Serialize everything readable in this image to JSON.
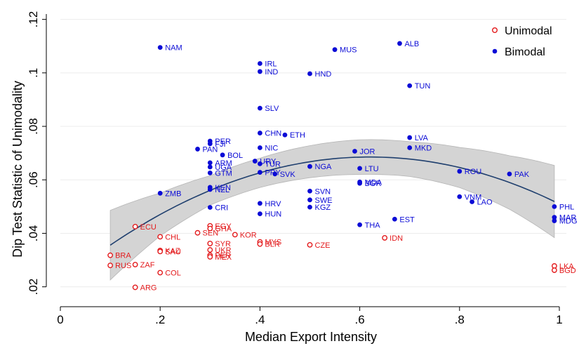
{
  "chart_data": {
    "type": "scatter",
    "xlabel": "Median Export Intensity",
    "ylabel": "Dip Test Statistic of Unimodality",
    "xlim": [
      0,
      1
    ],
    "ylim": [
      0.0165,
      0.122
    ],
    "x_ticks": [
      0,
      0.2,
      0.4,
      0.6,
      0.8,
      1
    ],
    "x_tick_labels": [
      "0",
      ".2",
      ".4",
      ".6",
      ".8",
      "1"
    ],
    "y_ticks": [
      0.02,
      0.04,
      0.06,
      0.08,
      0.1,
      0.12
    ],
    "y_tick_labels": [
      ".02",
      ".04",
      ".06",
      ".08",
      ".1",
      ".12"
    ],
    "grid": "horizontal",
    "legend_position": "top-right",
    "colors": {
      "unimodal": "#e31a1c",
      "bimodal": "#0b0bd6",
      "fit_line": "#1f3f6e",
      "ci_band": "#d4d4d4"
    },
    "series": [
      {
        "name": "Unimodal",
        "marker": "hollow-circle",
        "points": [
          {
            "label": "ECU",
            "x": 0.15,
            "y": 0.0425
          },
          {
            "label": "CHL",
            "x": 0.2,
            "y": 0.0387
          },
          {
            "label": "BRA",
            "x": 0.1,
            "y": 0.0318
          },
          {
            "label": "RUS",
            "x": 0.1,
            "y": 0.028
          },
          {
            "label": "ZAF",
            "x": 0.15,
            "y": 0.0283
          },
          {
            "label": "ARG",
            "x": 0.15,
            "y": 0.0198
          },
          {
            "label": "COL",
            "x": 0.2,
            "y": 0.0253
          },
          {
            "label": "KAZ",
            "x": 0.2,
            "y": 0.0336
          },
          {
            "label": "SAU",
            "x": 0.2,
            "y": 0.0332
          },
          {
            "label": "SEN",
            "x": 0.275,
            "y": 0.0402
          },
          {
            "label": "EGY",
            "x": 0.3,
            "y": 0.0428
          },
          {
            "label": "GHA",
            "x": 0.3,
            "y": 0.0418
          },
          {
            "label": "SYR",
            "x": 0.3,
            "y": 0.0362
          },
          {
            "label": "UKR",
            "x": 0.3,
            "y": 0.0338
          },
          {
            "label": "PER",
            "x": 0.3,
            "y": 0.0318
          },
          {
            "label": "MEX",
            "x": 0.3,
            "y": 0.0312
          },
          {
            "label": "KOR",
            "x": 0.35,
            "y": 0.0395
          },
          {
            "label": "MYS",
            "x": 0.4,
            "y": 0.0368
          },
          {
            "label": "BLR",
            "x": 0.4,
            "y": 0.036
          },
          {
            "label": "CZE",
            "x": 0.5,
            "y": 0.0357
          },
          {
            "label": "IDN",
            "x": 0.65,
            "y": 0.0383
          },
          {
            "label": "LKA",
            "x": 0.99,
            "y": 0.0278
          },
          {
            "label": "BGD",
            "x": 0.99,
            "y": 0.0262
          }
        ]
      },
      {
        "name": "Bimodal",
        "marker": "filled-circle",
        "points": [
          {
            "label": "NAM",
            "x": 0.2,
            "y": 0.1095
          },
          {
            "label": "ZMB",
            "x": 0.2,
            "y": 0.055
          },
          {
            "label": "PER",
            "x": 0.3,
            "y": 0.0745
          },
          {
            "label": "FJI",
            "x": 0.3,
            "y": 0.0735
          },
          {
            "label": "PAN",
            "x": 0.275,
            "y": 0.0715
          },
          {
            "label": "BOL",
            "x": 0.325,
            "y": 0.0693
          },
          {
            "label": "ARM",
            "x": 0.3,
            "y": 0.0664
          },
          {
            "label": "UGA",
            "x": 0.3,
            "y": 0.0648
          },
          {
            "label": "GTM",
            "x": 0.3,
            "y": 0.0626
          },
          {
            "label": "KEN",
            "x": 0.3,
            "y": 0.0572
          },
          {
            "label": "NZL",
            "x": 0.3,
            "y": 0.0564
          },
          {
            "label": "CRI",
            "x": 0.3,
            "y": 0.0497
          },
          {
            "label": "IRL",
            "x": 0.4,
            "y": 0.1035
          },
          {
            "label": "IND",
            "x": 0.4,
            "y": 0.1005
          },
          {
            "label": "SLV",
            "x": 0.4,
            "y": 0.0868
          },
          {
            "label": "CHN",
            "x": 0.4,
            "y": 0.0775
          },
          {
            "label": "ETH",
            "x": 0.45,
            "y": 0.0768
          },
          {
            "label": "NIC",
            "x": 0.4,
            "y": 0.072
          },
          {
            "label": "URY",
            "x": 0.39,
            "y": 0.067
          },
          {
            "label": "TUR",
            "x": 0.4,
            "y": 0.066
          },
          {
            "label": "PRY",
            "x": 0.4,
            "y": 0.0628
          },
          {
            "label": "SVK",
            "x": 0.43,
            "y": 0.0622
          },
          {
            "label": "HRV",
            "x": 0.4,
            "y": 0.0512
          },
          {
            "label": "HUN",
            "x": 0.4,
            "y": 0.0473
          },
          {
            "label": "MUS",
            "x": 0.55,
            "y": 0.1087
          },
          {
            "label": "HND",
            "x": 0.5,
            "y": 0.0997
          },
          {
            "label": "NGA",
            "x": 0.5,
            "y": 0.065
          },
          {
            "label": "SVN",
            "x": 0.5,
            "y": 0.0558
          },
          {
            "label": "SWE",
            "x": 0.5,
            "y": 0.0525
          },
          {
            "label": "KGZ",
            "x": 0.5,
            "y": 0.0498
          },
          {
            "label": "JOR",
            "x": 0.59,
            "y": 0.0707
          },
          {
            "label": "LTU",
            "x": 0.6,
            "y": 0.0643
          },
          {
            "label": "MDA",
            "x": 0.6,
            "y": 0.0592
          },
          {
            "label": "BGR",
            "x": 0.6,
            "y": 0.0587
          },
          {
            "label": "THA",
            "x": 0.6,
            "y": 0.0432
          },
          {
            "label": "ALB",
            "x": 0.68,
            "y": 0.111
          },
          {
            "label": "TUN",
            "x": 0.7,
            "y": 0.0952
          },
          {
            "label": "LVA",
            "x": 0.7,
            "y": 0.0758
          },
          {
            "label": "MKD",
            "x": 0.7,
            "y": 0.072
          },
          {
            "label": "EST",
            "x": 0.67,
            "y": 0.0453
          },
          {
            "label": "ROU",
            "x": 0.8,
            "y": 0.0632
          },
          {
            "label": "PAK",
            "x": 0.9,
            "y": 0.0622
          },
          {
            "label": "VNM",
            "x": 0.8,
            "y": 0.0537
          },
          {
            "label": "LAO",
            "x": 0.825,
            "y": 0.0518
          },
          {
            "label": "PHL",
            "x": 0.99,
            "y": 0.05
          },
          {
            "label": "MAR",
            "x": 0.99,
            "y": 0.046
          },
          {
            "label": "MDG",
            "x": 0.99,
            "y": 0.0447
          }
        ]
      }
    ],
    "fit": {
      "type": "quadratic",
      "coefficients": {
        "a": -0.1218,
        "b": 0.1511,
        "c": 0.02168
      },
      "ci_halfwidth_at_x": [
        {
          "x": 0.1,
          "hw": 0.013
        },
        {
          "x": 0.2,
          "hw": 0.008
        },
        {
          "x": 0.3,
          "hw": 0.0055
        },
        {
          "x": 0.4,
          "hw": 0.0055
        },
        {
          "x": 0.5,
          "hw": 0.006
        },
        {
          "x": 0.6,
          "hw": 0.0065
        },
        {
          "x": 0.7,
          "hw": 0.0065
        },
        {
          "x": 0.8,
          "hw": 0.0075
        },
        {
          "x": 0.9,
          "hw": 0.01
        },
        {
          "x": 0.99,
          "hw": 0.0135
        }
      ]
    }
  }
}
